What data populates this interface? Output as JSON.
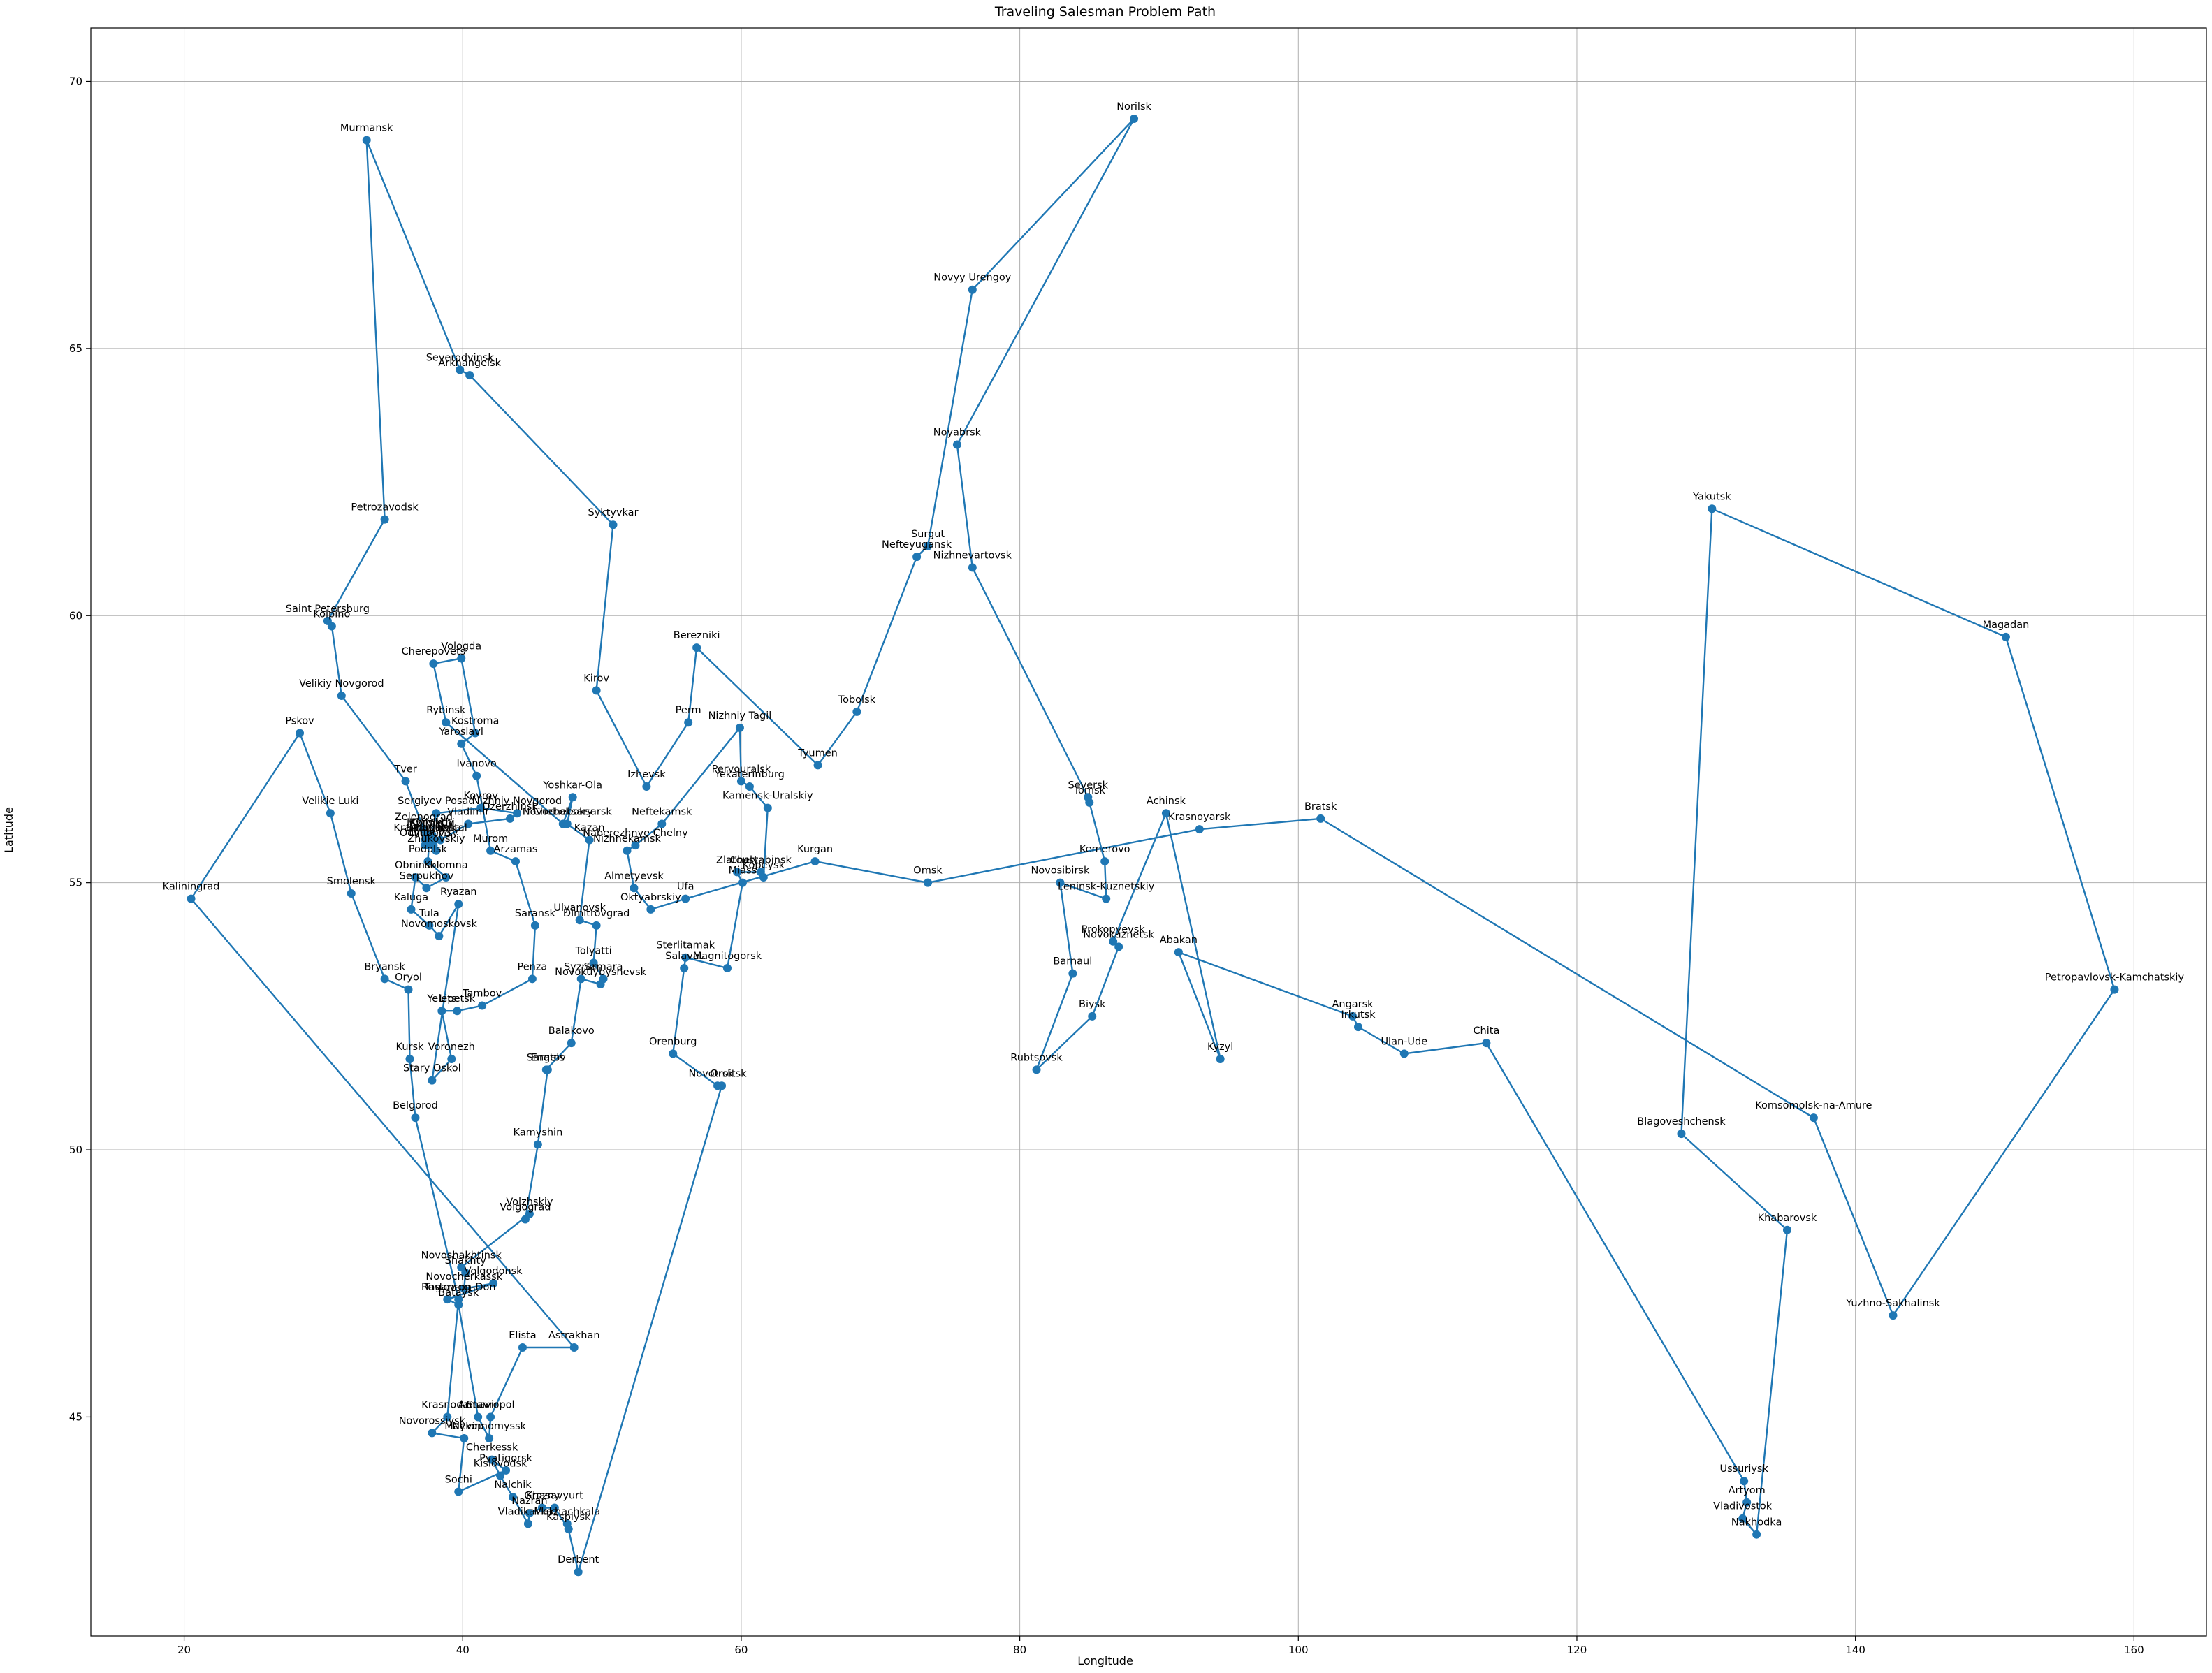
{
  "chart_data": {
    "type": "line",
    "title": "Traveling Salesman Problem Path",
    "xlabel": "Longitude",
    "ylabel": "Latitude",
    "xlim": [
      13.3,
      165.2
    ],
    "ylim": [
      40.9,
      71.0
    ],
    "xticks": [
      20,
      40,
      60,
      80,
      100,
      120,
      140,
      160
    ],
    "yticks": [
      45,
      50,
      55,
      60,
      65,
      70
    ],
    "grid": true,
    "line_color": "#1f77b4",
    "marker_color": "#1f77b4",
    "cities": [
      {
        "name": "Kaliningrad",
        "lon": 20.5,
        "lat": 54.7
      },
      {
        "name": "Pskov",
        "lon": 28.3,
        "lat": 57.8
      },
      {
        "name": "Velikie Luki",
        "lon": 30.5,
        "lat": 56.3
      },
      {
        "name": "Smolensk",
        "lon": 32.0,
        "lat": 54.8
      },
      {
        "name": "Bryansk",
        "lon": 34.4,
        "lat": 53.2
      },
      {
        "name": "Oryol",
        "lon": 36.1,
        "lat": 53.0
      },
      {
        "name": "Kursk",
        "lon": 36.2,
        "lat": 51.7
      },
      {
        "name": "Belgorod",
        "lon": 36.6,
        "lat": 50.6
      },
      {
        "name": "Rostov-on-Don",
        "lon": 39.7,
        "lat": 47.2
      },
      {
        "name": "Krasnodar",
        "lon": 38.9,
        "lat": 45.0
      },
      {
        "name": "Novorossiysk",
        "lon": 37.8,
        "lat": 44.7
      },
      {
        "name": "Maykop",
        "lon": 40.1,
        "lat": 44.6
      },
      {
        "name": "Sochi",
        "lon": 39.7,
        "lat": 43.6
      },
      {
        "name": "Pyatigorsk",
        "lon": 43.1,
        "lat": 44.0
      },
      {
        "name": "Cherkessk",
        "lon": 42.1,
        "lat": 44.2
      },
      {
        "name": "Kislovodsk",
        "lon": 42.7,
        "lat": 43.9
      },
      {
        "name": "Nalchik",
        "lon": 43.6,
        "lat": 43.5
      },
      {
        "name": "Vladikavkaz",
        "lon": 44.7,
        "lat": 43.0
      },
      {
        "name": "Nazran",
        "lon": 44.8,
        "lat": 43.2
      },
      {
        "name": "Grozny",
        "lon": 45.7,
        "lat": 43.3
      },
      {
        "name": "Khasavyurt",
        "lon": 46.6,
        "lat": 43.3
      },
      {
        "name": "Kaspiysk",
        "lon": 47.6,
        "lat": 42.9
      },
      {
        "name": "Makhachkala",
        "lon": 47.5,
        "lat": 43.0
      },
      {
        "name": "Derbent",
        "lon": 48.3,
        "lat": 42.1
      },
      {
        "name": "Orsk",
        "lon": 58.6,
        "lat": 51.2
      },
      {
        "name": "Novotroitsk",
        "lon": 58.3,
        "lat": 51.2
      },
      {
        "name": "Orenburg",
        "lon": 55.1,
        "lat": 51.8
      },
      {
        "name": "Salavat",
        "lon": 55.9,
        "lat": 53.4
      },
      {
        "name": "Sterlitamak",
        "lon": 56.0,
        "lat": 53.6
      },
      {
        "name": "Magnitogorsk",
        "lon": 59.0,
        "lat": 53.4
      },
      {
        "name": "Miass",
        "lon": 60.1,
        "lat": 55.0
      },
      {
        "name": "Zlatoust",
        "lon": 59.7,
        "lat": 55.2
      },
      {
        "name": "Chelyabinsk",
        "lon": 61.4,
        "lat": 55.2
      },
      {
        "name": "Kopeysk",
        "lon": 61.6,
        "lat": 55.1
      },
      {
        "name": "Kamensk-Uralskiy",
        "lon": 61.9,
        "lat": 56.4
      },
      {
        "name": "Yekaterinburg",
        "lon": 60.6,
        "lat": 56.8
      },
      {
        "name": "Pervouralsk",
        "lon": 60.0,
        "lat": 56.9
      },
      {
        "name": "Nizhniy Tagil",
        "lon": 59.9,
        "lat": 57.9
      },
      {
        "name": "Neftekamsk",
        "lon": 54.3,
        "lat": 56.1
      },
      {
        "name": "Naberezhnye Chelny",
        "lon": 52.4,
        "lat": 55.7
      },
      {
        "name": "Nizhnekamsk",
        "lon": 51.8,
        "lat": 55.6
      },
      {
        "name": "Almetyevsk",
        "lon": 52.3,
        "lat": 54.9
      },
      {
        "name": "Oktyabrskiy",
        "lon": 53.5,
        "lat": 54.5
      },
      {
        "name": "Ufa",
        "lon": 56.0,
        "lat": 54.7
      },
      {
        "name": "Kurgan",
        "lon": 65.3,
        "lat": 55.4
      },
      {
        "name": "Omsk",
        "lon": 73.4,
        "lat": 55.0
      },
      {
        "name": "Krasnoyarsk",
        "lon": 92.9,
        "lat": 56.0
      },
      {
        "name": "Bratsk",
        "lon": 101.6,
        "lat": 56.2
      },
      {
        "name": "Komsomolsk-na-Amure",
        "lon": 137.0,
        "lat": 50.6
      },
      {
        "name": "Yuzhno-Sakhalinsk",
        "lon": 142.7,
        "lat": 46.9
      },
      {
        "name": "Petropavlovsk-Kamchatskiy",
        "lon": 158.6,
        "lat": 53.0
      },
      {
        "name": "Magadan",
        "lon": 150.8,
        "lat": 59.6
      },
      {
        "name": "Yakutsk",
        "lon": 129.7,
        "lat": 62.0
      },
      {
        "name": "Blagoveshchensk",
        "lon": 127.5,
        "lat": 50.3
      },
      {
        "name": "Khabarovsk",
        "lon": 135.1,
        "lat": 48.5
      },
      {
        "name": "Nakhodka",
        "lon": 132.9,
        "lat": 42.8
      },
      {
        "name": "Vladivostok",
        "lon": 131.9,
        "lat": 43.1
      },
      {
        "name": "Artyom",
        "lon": 132.2,
        "lat": 43.4
      },
      {
        "name": "Ussuriysk",
        "lon": 132.0,
        "lat": 43.8
      },
      {
        "name": "Chita",
        "lon": 113.5,
        "lat": 52.0
      },
      {
        "name": "Ulan-Ude",
        "lon": 107.6,
        "lat": 51.8
      },
      {
        "name": "Irkutsk",
        "lon": 104.3,
        "lat": 52.3
      },
      {
        "name": "Angarsk",
        "lon": 103.9,
        "lat": 52.5
      },
      {
        "name": "Abakan",
        "lon": 91.4,
        "lat": 53.7
      },
      {
        "name": "Kyzyl",
        "lon": 94.4,
        "lat": 51.7
      },
      {
        "name": "Achinsk",
        "lon": 90.5,
        "lat": 56.3
      },
      {
        "name": "Prokopyevsk",
        "lon": 86.7,
        "lat": 53.9
      },
      {
        "name": "Novokuznetsk",
        "lon": 87.1,
        "lat": 53.8
      },
      {
        "name": "Biysk",
        "lon": 85.2,
        "lat": 52.5
      },
      {
        "name": "Rubtsovsk",
        "lon": 81.2,
        "lat": 51.5
      },
      {
        "name": "Barnaul",
        "lon": 83.8,
        "lat": 53.3
      },
      {
        "name": "Novosibirsk",
        "lon": 82.9,
        "lat": 55.0
      },
      {
        "name": "Leninsk-Kuznetskiy",
        "lon": 86.2,
        "lat": 54.7
      },
      {
        "name": "Kemerovo",
        "lon": 86.1,
        "lat": 55.4
      },
      {
        "name": "Tomsk",
        "lon": 85.0,
        "lat": 56.5
      },
      {
        "name": "Seversk",
        "lon": 84.9,
        "lat": 56.6
      },
      {
        "name": "Nizhnevartovsk",
        "lon": 76.6,
        "lat": 60.9
      },
      {
        "name": "Noyabrsk",
        "lon": 75.5,
        "lat": 63.2
      },
      {
        "name": "Norilsk",
        "lon": 88.2,
        "lat": 69.3
      },
      {
        "name": "Novyy Urengoy",
        "lon": 76.6,
        "lat": 66.1
      },
      {
        "name": "Surgut",
        "lon": 73.4,
        "lat": 61.3
      },
      {
        "name": "Nefteyugansk",
        "lon": 72.6,
        "lat": 61.1
      },
      {
        "name": "Tobolsk",
        "lon": 68.3,
        "lat": 58.2
      },
      {
        "name": "Tyumen",
        "lon": 65.5,
        "lat": 57.2
      },
      {
        "name": "Berezniki",
        "lon": 56.8,
        "lat": 59.4
      },
      {
        "name": "Perm",
        "lon": 56.2,
        "lat": 58.0
      },
      {
        "name": "Izhevsk",
        "lon": 53.2,
        "lat": 56.8
      },
      {
        "name": "Kirov",
        "lon": 49.6,
        "lat": 58.6
      },
      {
        "name": "Syktyvkar",
        "lon": 50.8,
        "lat": 61.7
      },
      {
        "name": "Arkhangelsk",
        "lon": 40.5,
        "lat": 64.5
      },
      {
        "name": "Severodvinsk",
        "lon": 39.8,
        "lat": 64.6
      },
      {
        "name": "Murmansk",
        "lon": 33.1,
        "lat": 68.9
      },
      {
        "name": "Petrozavodsk",
        "lon": 34.4,
        "lat": 61.8
      },
      {
        "name": "Saint Petersburg",
        "lon": 30.3,
        "lat": 59.9
      },
      {
        "name": "Kolpino",
        "lon": 30.6,
        "lat": 59.8
      },
      {
        "name": "Velikiy Novgorod",
        "lon": 31.3,
        "lat": 58.5
      },
      {
        "name": "Tver",
        "lon": 35.9,
        "lat": 56.9
      },
      {
        "name": "Zelenograd",
        "lon": 37.2,
        "lat": 56.0
      },
      {
        "name": "Khimki",
        "lon": 37.4,
        "lat": 55.9
      },
      {
        "name": "Mytishchi",
        "lon": 37.7,
        "lat": 55.9
      },
      {
        "name": "Korolyov",
        "lon": 37.8,
        "lat": 55.9
      },
      {
        "name": "Sergiyev Posad",
        "lon": 38.1,
        "lat": 56.3
      },
      {
        "name": "Kovrov",
        "lon": 41.3,
        "lat": 56.4
      },
      {
        "name": "Nizhniy Novgorod",
        "lon": 43.9,
        "lat": 56.3
      },
      {
        "name": "Dzerzhinsk",
        "lon": 43.4,
        "lat": 56.2
      },
      {
        "name": "Vladimir",
        "lon": 40.4,
        "lat": 56.1
      },
      {
        "name": "Elektrostal",
        "lon": 38.4,
        "lat": 55.8
      },
      {
        "name": "Balashikha",
        "lon": 37.9,
        "lat": 55.8
      },
      {
        "name": "Lyubertsy",
        "lon": 37.9,
        "lat": 55.7
      },
      {
        "name": "Zhukovskiy",
        "lon": 38.1,
        "lat": 55.6
      },
      {
        "name": "Odintsovo",
        "lon": 37.3,
        "lat": 55.7
      },
      {
        "name": "Krasnogorsk",
        "lon": 37.3,
        "lat": 55.8
      },
      {
        "name": "Moscow",
        "lon": 37.6,
        "lat": 55.8
      },
      {
        "name": "Podolsk",
        "lon": 37.5,
        "lat": 55.4
      },
      {
        "name": "Kolomna",
        "lon": 38.8,
        "lat": 55.1
      },
      {
        "name": "Serpukhov",
        "lon": 37.4,
        "lat": 54.9
      },
      {
        "name": "Obninsk",
        "lon": 36.6,
        "lat": 55.1
      },
      {
        "name": "Kaluga",
        "lon": 36.3,
        "lat": 54.5
      },
      {
        "name": "Tula",
        "lon": 37.6,
        "lat": 54.2
      },
      {
        "name": "Novomoskovsk",
        "lon": 38.3,
        "lat": 54.0
      },
      {
        "name": "Ryazan",
        "lon": 39.7,
        "lat": 54.6
      },
      {
        "name": "Stary Oskol",
        "lon": 37.8,
        "lat": 51.3
      },
      {
        "name": "Voronezh",
        "lon": 39.2,
        "lat": 51.7
      },
      {
        "name": "Yelets",
        "lon": 38.5,
        "lat": 52.6
      },
      {
        "name": "Lipetsk",
        "lon": 39.6,
        "lat": 52.6
      },
      {
        "name": "Tambov",
        "lon": 41.4,
        "lat": 52.7
      },
      {
        "name": "Penza",
        "lon": 45.0,
        "lat": 53.2
      },
      {
        "name": "Saransk",
        "lon": 45.2,
        "lat": 54.2
      },
      {
        "name": "Arzamas",
        "lon": 43.8,
        "lat": 55.4
      },
      {
        "name": "Murom",
        "lon": 42.0,
        "lat": 55.6
      },
      {
        "name": "Ivanovo",
        "lon": 41.0,
        "lat": 57.0
      },
      {
        "name": "Yaroslavl",
        "lon": 39.9,
        "lat": 57.6
      },
      {
        "name": "Kostroma",
        "lon": 40.9,
        "lat": 57.8
      },
      {
        "name": "Vologda",
        "lon": 39.9,
        "lat": 59.2
      },
      {
        "name": "Cherepovets",
        "lon": 37.9,
        "lat": 59.1
      },
      {
        "name": "Rybinsk",
        "lon": 38.8,
        "lat": 58.0
      },
      {
        "name": "Cheboksary",
        "lon": 47.2,
        "lat": 56.1
      },
      {
        "name": "Yoshkar-Ola",
        "lon": 47.9,
        "lat": 56.6
      },
      {
        "name": "Novocheboksarsk",
        "lon": 47.5,
        "lat": 56.1
      },
      {
        "name": "Kazan",
        "lon": 49.1,
        "lat": 55.8
      },
      {
        "name": "Ulyanovsk",
        "lon": 48.4,
        "lat": 54.3
      },
      {
        "name": "Dimitrovgrad",
        "lon": 49.6,
        "lat": 54.2
      },
      {
        "name": "Tolyatti",
        "lon": 49.4,
        "lat": 53.5
      },
      {
        "name": "Samara",
        "lon": 50.1,
        "lat": 53.2
      },
      {
        "name": "Novokuybyshevsk",
        "lon": 49.9,
        "lat": 53.1
      },
      {
        "name": "Syzran",
        "lon": 48.5,
        "lat": 53.2
      },
      {
        "name": "Balakovo",
        "lon": 47.8,
        "lat": 52.0
      },
      {
        "name": "Saratov",
        "lon": 46.0,
        "lat": 51.5
      },
      {
        "name": "Engels",
        "lon": 46.1,
        "lat": 51.5
      },
      {
        "name": "Kamyshin",
        "lon": 45.4,
        "lat": 50.1
      },
      {
        "name": "Volgograd",
        "lon": 44.5,
        "lat": 48.7
      },
      {
        "name": "Volzhskiy",
        "lon": 44.8,
        "lat": 48.8
      },
      {
        "name": "Novoshakhtinsk",
        "lon": 39.9,
        "lat": 47.8
      },
      {
        "name": "Shakhty",
        "lon": 40.2,
        "lat": 47.7
      },
      {
        "name": "Novocherkassk",
        "lon": 40.1,
        "lat": 47.4
      },
      {
        "name": "Volgodonsk",
        "lon": 42.2,
        "lat": 47.5
      },
      {
        "name": "Taganrog",
        "lon": 38.9,
        "lat": 47.2
      },
      {
        "name": "Bataysk",
        "lon": 39.7,
        "lat": 47.1
      },
      {
        "name": "Armavir",
        "lon": 41.1,
        "lat": 45.0
      },
      {
        "name": "Nevinnomyssk",
        "lon": 41.9,
        "lat": 44.6
      },
      {
        "name": "Stavropol",
        "lon": 42.0,
        "lat": 45.0
      },
      {
        "name": "Elista",
        "lon": 44.3,
        "lat": 46.3
      },
      {
        "name": "Astrakhan",
        "lon": 48.0,
        "lat": 46.3
      }
    ]
  }
}
